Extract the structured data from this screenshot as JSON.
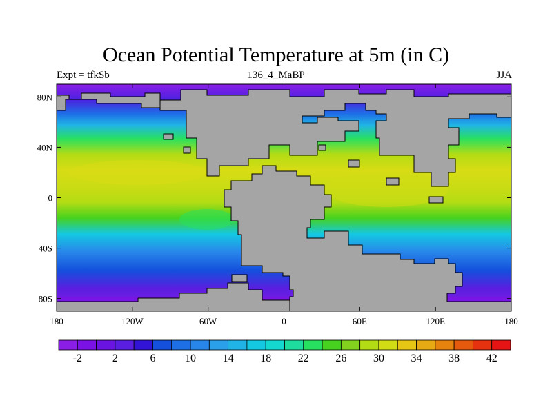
{
  "title": "Ocean Potential Temperature at 5m (in C)",
  "subtitle_left": "Expt = tfkSb",
  "subtitle_center": "136_4_MaBP",
  "subtitle_right": "JJA",
  "map": {
    "lon_range": [
      -180,
      180
    ],
    "lat_range": [
      -90,
      90
    ],
    "x_ticks": [
      {
        "value": -180,
        "label": "180"
      },
      {
        "value": -120,
        "label": "120W"
      },
      {
        "value": -60,
        "label": "60W"
      },
      {
        "value": 0,
        "label": "0"
      },
      {
        "value": 60,
        "label": "60E"
      },
      {
        "value": 120,
        "label": "120E"
      },
      {
        "value": 180,
        "label": "180"
      }
    ],
    "y_ticks": [
      {
        "value": 80,
        "label": "80N"
      },
      {
        "value": 40,
        "label": "40N"
      },
      {
        "value": 0,
        "label": "0"
      },
      {
        "value": -40,
        "label": "40S"
      },
      {
        "value": -80,
        "label": "80S"
      }
    ],
    "land_color": "#a5a5a5"
  },
  "colorbar": {
    "levels": [
      -4,
      -2,
      0,
      2,
      4,
      6,
      8,
      10,
      12,
      14,
      16,
      18,
      20,
      22,
      24,
      26,
      28,
      30,
      32,
      34,
      36,
      38,
      40,
      42,
      44
    ],
    "labels": [
      "-2",
      "2",
      "6",
      "10",
      "14",
      "18",
      "22",
      "26",
      "30",
      "34",
      "38",
      "42"
    ],
    "colors": [
      "#8a1ee6",
      "#7a12e6",
      "#6a14e2",
      "#5a1ee0",
      "#3214d6",
      "#1450dc",
      "#1e6ee6",
      "#2886ea",
      "#2aa0ea",
      "#20b4e6",
      "#14c8e2",
      "#14d8d0",
      "#1edc9e",
      "#28e060",
      "#46d21e",
      "#82d21e",
      "#b4dc14",
      "#d2dc14",
      "#e6c814",
      "#e6aa14",
      "#e6820e",
      "#e65a0e",
      "#e6320e",
      "#e61414"
    ]
  }
}
